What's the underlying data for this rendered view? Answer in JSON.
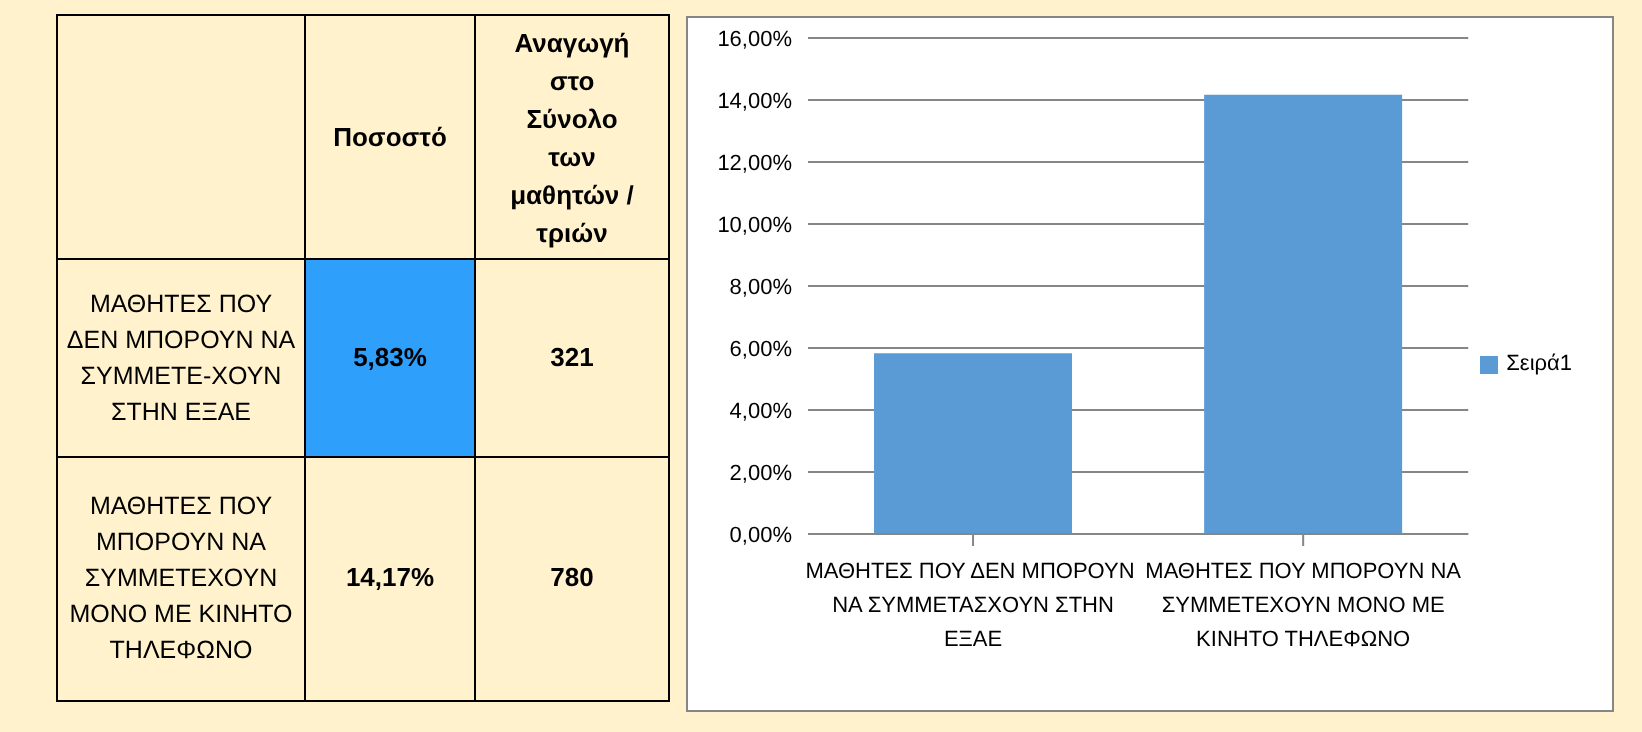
{
  "chart_data": [
    {
      "type": "other",
      "annotations": [
        "Ποσοστό",
        "Αναγωγή στο Σύνολο των μαθητών /τριών",
        "ΜΑΘΗΤΕΣ ΠΟΥ ΔΕΝ ΜΠΟΡΟΥΝ ΝΑ ΣΥΜΜΕΤΕ-ΧΟΥΝ ΣΤΗΝ ΕΞΑΕ",
        "5,83%",
        "321",
        "ΜΑΘΗΤΕΣ ΠΟΥ ΜΠΟΡΟΥΝ ΝΑ ΣΥΜΜΕΤΕΧΟΥΝ ΜΟΝΟ ΜΕ ΚΙΝΗΤΟ ΤΗΛΕΦΩΝΟ",
        "14,17%",
        "780"
      ]
    },
    {
      "type": "bar",
      "categories": [
        "ΜΑΘΗΤΕΣ ΠΟΥ ΔΕΝ ΜΠΟΡΟΥΝ  ΝΑ ΣΥΜΜΕΤΑΣΧΟΥΝ ΣΤΗΝ ΕΞΑΕ",
        "ΜΑΘΗΤΕΣ ΠΟΥ ΜΠΟΡΟΥΝ ΝΑ ΣΥΜΜΕΤΕΧΟΥΝ ΜΟΝΟ ΜΕ ΚΙΝΗΤΟ ΤΗΛΕΦΩΝΟ"
      ],
      "series": [
        {
          "name": "Σειρά1",
          "color": "#5b9bd5",
          "values": [
            5.83,
            14.17
          ]
        }
      ],
      "ylim": [
        0,
        16
      ],
      "yticks": [
        {
          "value": 0,
          "label": "0,00%"
        },
        {
          "value": 2,
          "label": "2,00%"
        },
        {
          "value": 4,
          "label": "4,00%"
        },
        {
          "value": 6,
          "label": "6,00%"
        },
        {
          "value": 8,
          "label": "8,00%"
        },
        {
          "value": 10,
          "label": "10,00%"
        },
        {
          "value": 12,
          "label": "12,00%"
        },
        {
          "value": 14,
          "label": "14,00%"
        },
        {
          "value": 16,
          "label": "16,00%"
        }
      ],
      "grid": "y",
      "legend": "right"
    }
  ]
}
